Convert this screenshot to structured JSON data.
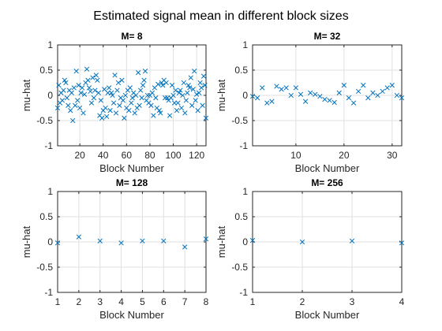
{
  "figure": {
    "title": "Estimated signal mean in different block sizes",
    "marker_color": "#0072BD"
  },
  "chart_data": [
    {
      "type": "scatter",
      "title": "M= 8",
      "xlabel": "Block Number",
      "ylabel": "mu-hat",
      "xlim": [
        1,
        128
      ],
      "ylim": [
        -1,
        1
      ],
      "xticks": [
        20,
        40,
        60,
        80,
        100,
        120
      ],
      "yticks": [
        -1,
        -0.5,
        0,
        0.5,
        1
      ],
      "ytick_labels": [
        "-1",
        "-0.5",
        "0",
        "0.5",
        "1"
      ],
      "marker": "x",
      "x": [
        1,
        2,
        3,
        4,
        5,
        6,
        7,
        8,
        9,
        10,
        11,
        12,
        13,
        14,
        15,
        16,
        17,
        18,
        19,
        20,
        21,
        22,
        23,
        24,
        25,
        26,
        27,
        28,
        29,
        30,
        31,
        32,
        33,
        34,
        35,
        36,
        37,
        38,
        39,
        40,
        41,
        42,
        43,
        44,
        45,
        46,
        47,
        48,
        49,
        50,
        51,
        52,
        53,
        54,
        55,
        56,
        57,
        58,
        59,
        60,
        61,
        62,
        63,
        64,
        65,
        66,
        67,
        68,
        69,
        70,
        71,
        72,
        73,
        74,
        75,
        76,
        77,
        78,
        79,
        80,
        81,
        82,
        83,
        84,
        85,
        86,
        87,
        88,
        89,
        90,
        91,
        92,
        93,
        94,
        95,
        96,
        97,
        98,
        99,
        100,
        101,
        102,
        103,
        104,
        105,
        106,
        107,
        108,
        109,
        110,
        111,
        112,
        113,
        114,
        115,
        116,
        117,
        118,
        119,
        120,
        121,
        122,
        123,
        124,
        125,
        126,
        127,
        128
      ],
      "y": [
        -0.25,
        0.2,
        -0.15,
        0.05,
        -0.1,
        0.1,
        0.3,
        0.25,
        -0.05,
        -0.2,
        0.1,
        -0.3,
        0.05,
        -0.5,
        0.15,
        -0.2,
        0.48,
        -0.1,
        0.2,
        -0.25,
        0.05,
        0.15,
        -0.35,
        0.02,
        0.25,
        0.52,
        0.3,
        0.15,
        0.08,
        -0.15,
        0.35,
        -0.05,
        0.1,
        0.4,
        0.3,
        0.05,
        -0.4,
        -0.1,
        -0.45,
        -0.3,
        0.12,
        -0.25,
        -0.42,
        0.05,
        0.15,
        -0.3,
        0.05,
        0.0,
        -0.15,
        0.4,
        -0.35,
        0.1,
        0.25,
        -0.2,
        -0.05,
        0.3,
        -0.1,
        -0.45,
        0.0,
        -0.25,
        0.1,
        -0.3,
        0.15,
        -0.15,
        -0.05,
        0.05,
        -0.35,
        0.0,
        -0.25,
        0.45,
        -0.2,
        0.1,
        -0.05,
        0.2,
        0.3,
        0.48,
        -0.1,
        0.0,
        -0.15,
        0.0,
        -0.2,
        0.05,
        -0.4,
        0.15,
        -0.05,
        -0.25,
        0.22,
        -0.3,
        -0.35,
        0.25,
        0.2,
        0.3,
        -0.05,
        0.25,
        -0.05,
        -0.1,
        -0.4,
        -0.05,
        0.2,
        0.0,
        -0.15,
        0.1,
        -0.3,
        -0.15,
        0.05,
        0.1,
        -0.25,
        0.0,
        0.25,
        -0.35,
        -0.1,
        0.05,
        0.2,
        0.15,
        0.35,
        -0.2,
        0.12,
        0.48,
        -0.1,
        0.02,
        -0.3,
        0.05,
        0.25,
        0.15,
        -0.2,
        0.38,
        0.2,
        -0.45
      ]
    },
    {
      "type": "scatter",
      "title": "M= 32",
      "xlabel": "Block Number",
      "ylabel": "mu-hat",
      "xlim": [
        1,
        32
      ],
      "ylim": [
        -1,
        1
      ],
      "xticks": [
        10,
        20,
        30
      ],
      "yticks": [
        -1,
        -0.5,
        0,
        0.5,
        1
      ],
      "ytick_labels": [
        "-1",
        "-0.5",
        "0",
        "0.5",
        "1"
      ],
      "marker": "x",
      "x": [
        1,
        2,
        3,
        4,
        5,
        6,
        7,
        8,
        9,
        10,
        11,
        12,
        13,
        14,
        15,
        16,
        17,
        18,
        19,
        20,
        21,
        22,
        23,
        24,
        25,
        26,
        27,
        28,
        29,
        30,
        31,
        32
      ],
      "y": [
        -0.02,
        -0.05,
        0.15,
        -0.15,
        -0.12,
        0.18,
        0.12,
        0.15,
        0.0,
        0.15,
        0.02,
        -0.12,
        0.05,
        0.02,
        -0.02,
        -0.08,
        -0.1,
        -0.14,
        0.05,
        0.2,
        -0.05,
        -0.15,
        0.08,
        0.2,
        -0.05,
        0.05,
        0.0,
        0.08,
        0.15,
        0.2,
        0.0,
        -0.05
      ]
    },
    {
      "type": "scatter",
      "title": "M= 128",
      "xlabel": "Block Number",
      "ylabel": "mu-hat",
      "xlim": [
        1,
        8
      ],
      "ylim": [
        -1,
        1
      ],
      "xticks": [
        1,
        2,
        3,
        4,
        5,
        6,
        7,
        8
      ],
      "yticks": [
        -1,
        -0.5,
        0,
        0.5,
        1
      ],
      "ytick_labels": [
        "-1",
        "-0.5",
        "0",
        "0.5",
        "1"
      ],
      "marker": "x",
      "x": [
        1,
        2,
        3,
        4,
        5,
        6,
        7,
        8
      ],
      "y": [
        -0.02,
        0.1,
        0.02,
        -0.02,
        0.02,
        0.02,
        -0.1,
        0.06
      ]
    },
    {
      "type": "scatter",
      "title": "M= 256",
      "xlabel": "Block Number",
      "ylabel": "mu-hat",
      "xlim": [
        1,
        4
      ],
      "ylim": [
        -1,
        1
      ],
      "xticks": [
        1,
        2,
        3,
        4
      ],
      "yticks": [
        -1,
        -0.5,
        0,
        0.5,
        1
      ],
      "ytick_labels": [
        "-1",
        "-0.5",
        "0",
        "0.5",
        "1"
      ],
      "marker": "x",
      "x": [
        1,
        2,
        3,
        4
      ],
      "y": [
        0.03,
        0.0,
        0.02,
        -0.02
      ]
    }
  ]
}
